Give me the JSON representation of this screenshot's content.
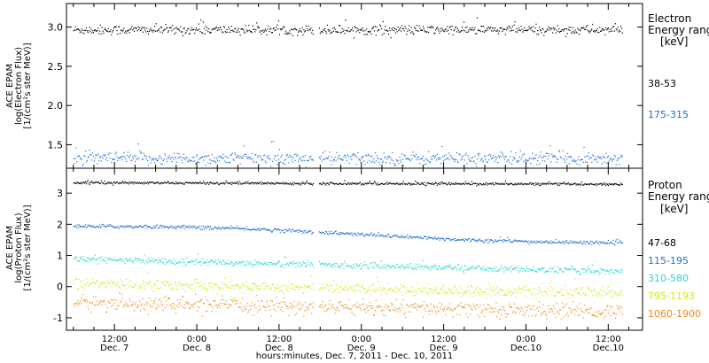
{
  "x_axis": {
    "tick_labels": [
      {
        "time": "12:00",
        "date": "Dec. 7"
      },
      {
        "time": "0:00",
        "date": "Dec. 8"
      },
      {
        "time": "12:00",
        "date": "Dec. 8"
      },
      {
        "time": "0:00",
        "date": "Dec. 9"
      },
      {
        "time": "12:00",
        "date": "Dec. 9"
      },
      {
        "time": "0:00",
        "date": "Dec.10"
      },
      {
        "time": "12:00",
        "date": "Dec.10"
      }
    ],
    "label": "hours:minutes, Dec. 7, 2011 - Dec. 10, 2011"
  },
  "chart_data": [
    {
      "type": "scatter",
      "panel": "electron",
      "ylabel": [
        "ACE EPAM",
        "log(Electron Flux)",
        "[1/(cm²s ster MeV)]"
      ],
      "ylim": [
        1.2,
        3.3
      ],
      "y_ticks": [
        "1.5",
        "2.0",
        "2.5",
        "3.0"
      ],
      "x_range_hours_from_dec7_0000": [
        5,
        89
      ],
      "data_gap_hours": [
        41.0,
        41.8
      ],
      "legend_title": [
        "Electron",
        "Energy ranges",
        "[keV]"
      ],
      "series": [
        {
          "name": "38-53",
          "color": "#000000",
          "mean": 2.97,
          "spread": 0.03,
          "t_start": 6,
          "t_end": 86
        },
        {
          "name": "175-315",
          "color": "#1c6fd6",
          "mean": 1.33,
          "spread": 0.04,
          "t_start": 6,
          "t_end": 86
        }
      ]
    },
    {
      "type": "scatter",
      "panel": "proton",
      "ylabel": [
        "ACE EPAM",
        "log(Proton Flux)",
        "[1/(cm²s ster MeV)]"
      ],
      "ylim": [
        -1.4,
        3.8
      ],
      "y_ticks": [
        "-1",
        "0",
        "1",
        "2",
        "3"
      ],
      "x_range_hours_from_dec7_0000": [
        5,
        89
      ],
      "data_gap_hours": [
        41.0,
        41.8
      ],
      "legend_title": [
        "Proton",
        "Energy ranges",
        "[keV]"
      ],
      "series": [
        {
          "name": "47-68",
          "color": "#000000",
          "start": 3.35,
          "end": 3.3,
          "spread": 0.02,
          "t_start": 6,
          "t_end": 86
        },
        {
          "name": "115-195",
          "color": "#1c6fd6",
          "start": 1.95,
          "end": 1.45,
          "spread": 0.03,
          "t_start": 6,
          "t_end": 86
        },
        {
          "name": "310-580",
          "color": "#26d6d0",
          "start": 0.9,
          "end": 0.5,
          "spread": 0.05,
          "t_start": 6,
          "t_end": 86
        },
        {
          "name": "795-1193",
          "color": "#d3e81a",
          "start": 0.12,
          "end": -0.2,
          "spread": 0.09,
          "t_start": 6,
          "t_end": 86
        },
        {
          "name": "1060-1900",
          "color": "#f08a18",
          "start": -0.5,
          "end": -0.8,
          "spread": 0.12,
          "t_start": 6,
          "t_end": 86
        }
      ]
    }
  ]
}
